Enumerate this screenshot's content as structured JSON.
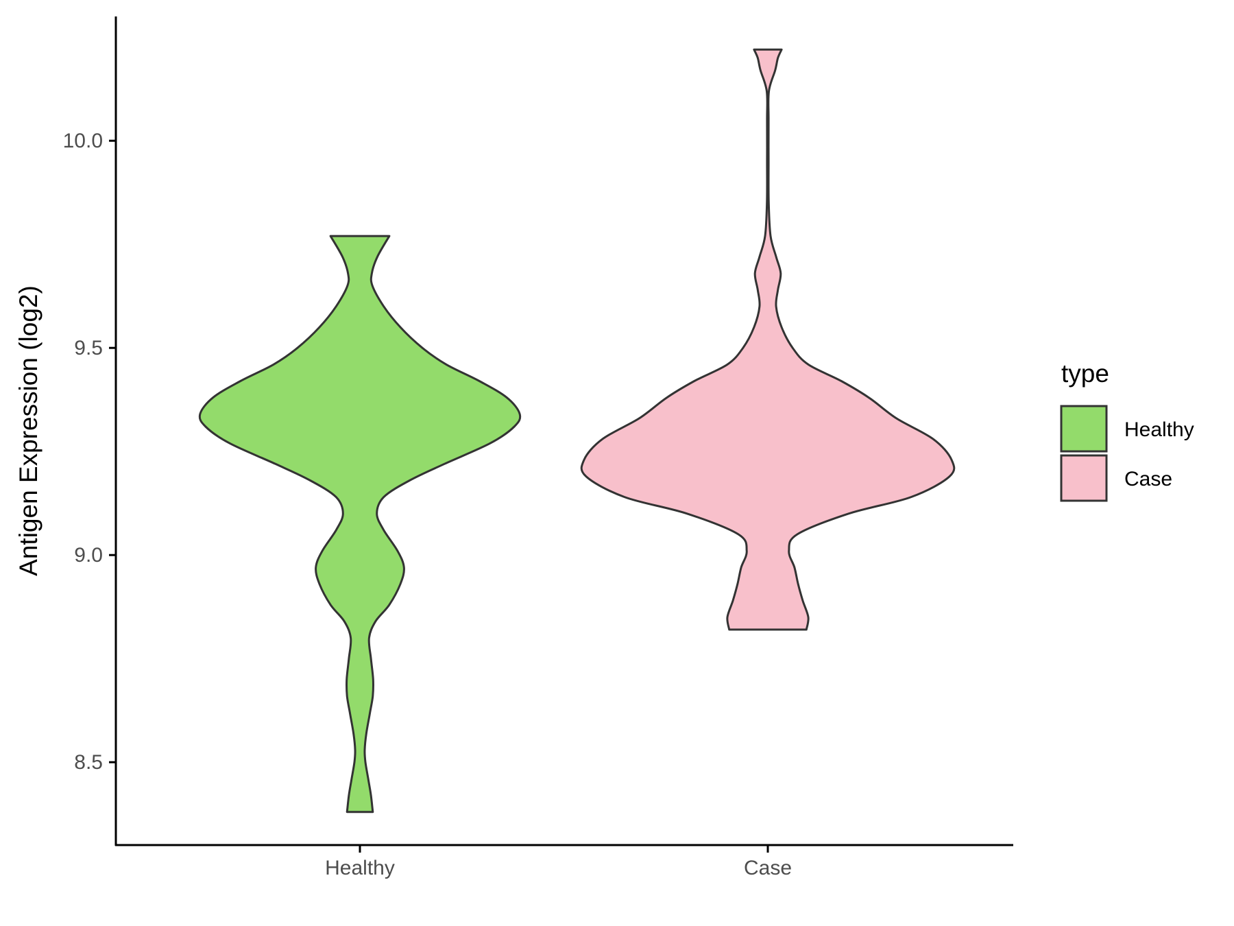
{
  "chart_data": {
    "type": "violin",
    "title": "",
    "xlabel": "",
    "ylabel": "Antigen Expression (log2)",
    "ylim": [
      8.3,
      10.3
    ],
    "yticks": [
      8.5,
      9.0,
      9.5,
      10.0
    ],
    "ytick_labels": [
      "8.5",
      "9.0",
      "9.5",
      "10.0"
    ],
    "categories": [
      "Healthy",
      "Case"
    ],
    "grid": false,
    "legend": {
      "title": "type",
      "placement": "right",
      "entries": [
        {
          "label": "Healthy",
          "color": "#93db6b"
        },
        {
          "label": "Case",
          "color": "#f8c0cb"
        }
      ]
    },
    "series": [
      {
        "category": "Healthy",
        "color": "#93db6b",
        "min": 8.38,
        "max": 9.77,
        "density": [
          [
            8.38,
            0.07
          ],
          [
            8.42,
            0.06
          ],
          [
            8.46,
            0.045
          ],
          [
            8.5,
            0.03
          ],
          [
            8.53,
            0.026
          ],
          [
            8.57,
            0.035
          ],
          [
            8.62,
            0.055
          ],
          [
            8.66,
            0.07
          ],
          [
            8.7,
            0.072
          ],
          [
            8.75,
            0.06
          ],
          [
            8.8,
            0.05
          ],
          [
            8.84,
            0.085
          ],
          [
            8.88,
            0.16
          ],
          [
            8.93,
            0.22
          ],
          [
            8.97,
            0.24
          ],
          [
            9.01,
            0.205
          ],
          [
            9.06,
            0.13
          ],
          [
            9.1,
            0.092
          ],
          [
            9.14,
            0.13
          ],
          [
            9.18,
            0.27
          ],
          [
            9.22,
            0.46
          ],
          [
            9.27,
            0.71
          ],
          [
            9.31,
            0.84
          ],
          [
            9.34,
            0.87
          ],
          [
            9.38,
            0.8
          ],
          [
            9.42,
            0.65
          ],
          [
            9.46,
            0.47
          ],
          [
            9.5,
            0.34
          ],
          [
            9.55,
            0.22
          ],
          [
            9.6,
            0.13
          ],
          [
            9.65,
            0.068
          ],
          [
            9.68,
            0.065
          ],
          [
            9.72,
            0.095
          ],
          [
            9.77,
            0.16
          ]
        ]
      },
      {
        "category": "Case",
        "color": "#f8c0cb",
        "min": 8.82,
        "max": 10.22,
        "density": [
          [
            8.82,
            0.21
          ],
          [
            8.85,
            0.22
          ],
          [
            8.89,
            0.19
          ],
          [
            8.93,
            0.165
          ],
          [
            8.97,
            0.145
          ],
          [
            9.01,
            0.115
          ],
          [
            9.05,
            0.16
          ],
          [
            9.1,
            0.44
          ],
          [
            9.14,
            0.78
          ],
          [
            9.19,
            0.99
          ],
          [
            9.23,
            1.0
          ],
          [
            9.28,
            0.9
          ],
          [
            9.33,
            0.7
          ],
          [
            9.38,
            0.55
          ],
          [
            9.42,
            0.4
          ],
          [
            9.46,
            0.22
          ],
          [
            9.5,
            0.135
          ],
          [
            9.55,
            0.075
          ],
          [
            9.6,
            0.045
          ],
          [
            9.64,
            0.055
          ],
          [
            9.68,
            0.07
          ],
          [
            9.72,
            0.045
          ],
          [
            9.77,
            0.015
          ],
          [
            9.85,
            0.005
          ],
          [
            9.95,
            0.004
          ],
          [
            10.05,
            0.004
          ],
          [
            10.12,
            0.006
          ],
          [
            10.17,
            0.04
          ],
          [
            10.2,
            0.055
          ],
          [
            10.22,
            0.075
          ]
        ]
      }
    ]
  }
}
